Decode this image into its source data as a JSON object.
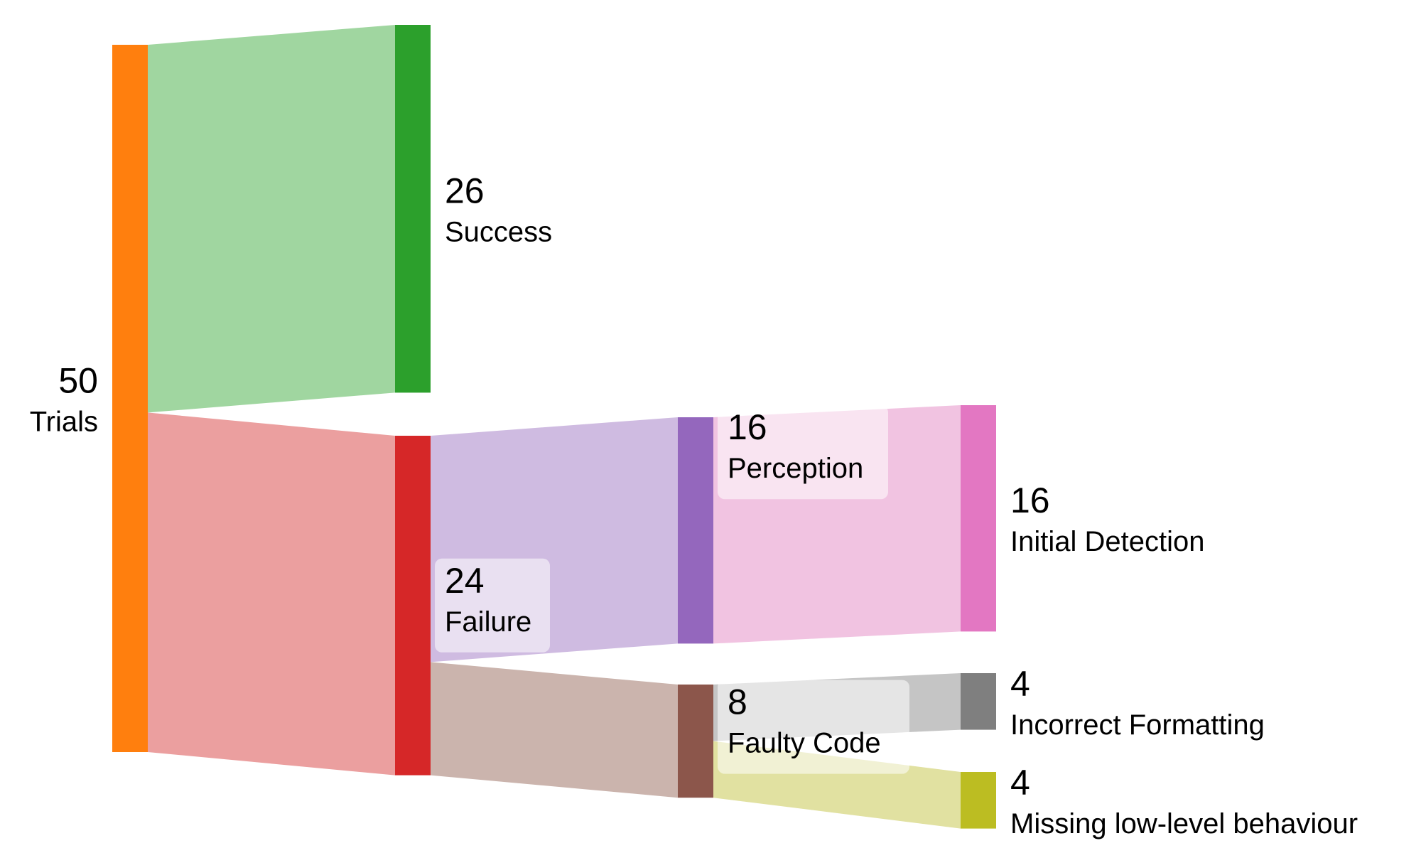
{
  "chart_data": {
    "type": "sankey",
    "nodes": [
      {
        "id": "trials",
        "label": "Trials",
        "value": 50,
        "color": "#ff7f0e"
      },
      {
        "id": "success",
        "label": "Success",
        "value": 26,
        "color": "#2ca02c"
      },
      {
        "id": "failure",
        "label": "Failure",
        "value": 24,
        "color": "#d62728"
      },
      {
        "id": "perception",
        "label": "Perception",
        "value": 16,
        "color": "#9467bd"
      },
      {
        "id": "faulty-code",
        "label": "Faulty Code",
        "value": 8,
        "color": "#8c564b"
      },
      {
        "id": "initial-detection",
        "label": "Initial Detection",
        "value": 16,
        "color": "#e377c2"
      },
      {
        "id": "incorrect-formatting",
        "label": "Incorrect Formatting",
        "value": 4,
        "color": "#7f7f7f"
      },
      {
        "id": "missing-low-level",
        "label": "Missing low-level behaviour",
        "value": 4,
        "color": "#bcbd22"
      }
    ],
    "links": [
      {
        "source": "trials",
        "target": "success",
        "value": 26,
        "color": "#a0d6a0"
      },
      {
        "source": "trials",
        "target": "failure",
        "value": 24,
        "color": "#eb9f9f"
      },
      {
        "source": "failure",
        "target": "perception",
        "value": 16,
        "color": "#cfbbe1"
      },
      {
        "source": "failure",
        "target": "faulty-code",
        "value": 8,
        "color": "#cbb4ad"
      },
      {
        "source": "perception",
        "target": "initial-detection",
        "value": 16,
        "color": "#f1c3e1"
      },
      {
        "source": "faulty-code",
        "target": "incorrect-formatting",
        "value": 4,
        "color": "#c5c5c5"
      },
      {
        "source": "faulty-code",
        "target": "missing-low-level",
        "value": 4,
        "color": "#e1e1a1"
      }
    ]
  }
}
